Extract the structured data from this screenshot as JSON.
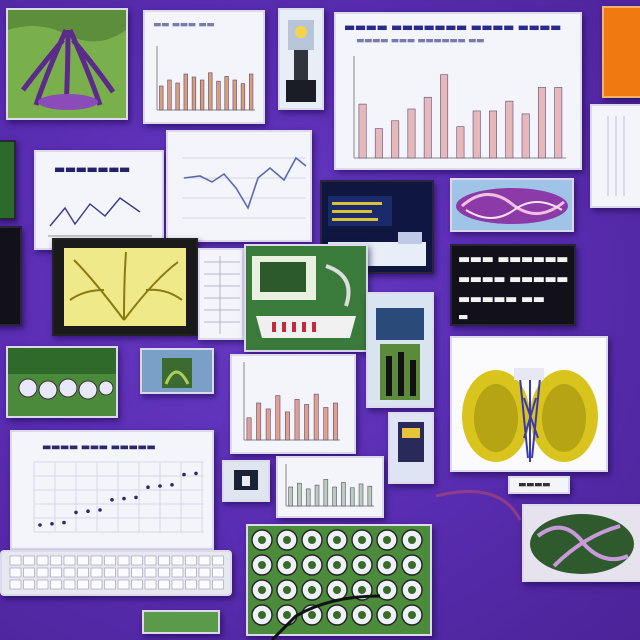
{
  "scene": {
    "background_color": "#5a2fb0",
    "accent_colors": [
      "#e8e23a",
      "#3a9a34",
      "#f07a12",
      "#c98a8a",
      "#8b3aa8"
    ]
  },
  "panels": {
    "top_chart": {
      "bar_levels": [
        0.55,
        0.3,
        0.38,
        0.5,
        0.62,
        0.85,
        0.32,
        0.48,
        0.48,
        0.58,
        0.45,
        0.72,
        0.72
      ]
    },
    "small_bar_chart": {
      "bar_levels": [
        0.4,
        0.5,
        0.45,
        0.6,
        0.55,
        0.5,
        0.62,
        0.48,
        0.56,
        0.5,
        0.44,
        0.6
      ]
    },
    "mid_bar_chart": {
      "bar_levels": [
        0.3,
        0.5,
        0.42,
        0.6,
        0.38,
        0.55,
        0.48,
        0.62,
        0.44,
        0.5
      ]
    },
    "lower_bar_chart": {
      "bar_levels": [
        0.5,
        0.6,
        0.45,
        0.55,
        0.7,
        0.5,
        0.62,
        0.48,
        0.58,
        0.52
      ]
    },
    "scatter_chart": {
      "trend": "rising"
    }
  },
  "icons": [
    "laptop-icon",
    "keyboard-icon",
    "cable-icon",
    "plant-icon",
    "microscope-icon"
  ]
}
